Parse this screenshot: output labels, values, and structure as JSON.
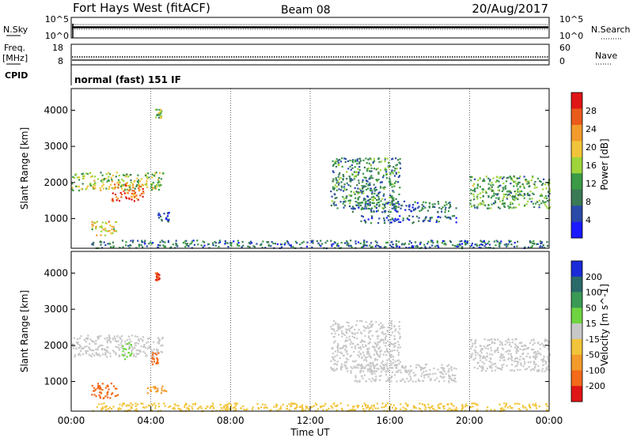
{
  "header": {
    "station": "Fort Hays West (fitACF)",
    "beam": "Beam 08",
    "date": "20/Aug/2017"
  },
  "status_panels": {
    "nsky": {
      "label": "N.Sky",
      "ticks": [
        "10^5",
        "10^0"
      ]
    },
    "nsearch": {
      "label": "N.Search",
      "ticks": [
        "10^5",
        "10^0"
      ]
    },
    "freq": {
      "label_lines": [
        "Freq.",
        "[MHz]"
      ],
      "ticks": [
        "18",
        "8"
      ]
    },
    "nave": {
      "label": "Nave",
      "ticks": [
        "60",
        "0"
      ]
    },
    "cpid": {
      "label": "CPID",
      "value": "normal (fast) 151 IF"
    }
  },
  "chart_data": [
    {
      "type": "heatmap",
      "name": "power-panel",
      "xlabel": "",
      "ylabel": "Slant Range [km]",
      "y_ticks": [
        "1000",
        "2000",
        "3000",
        "4000"
      ],
      "ylim": [
        180,
        4600
      ],
      "colorbar": {
        "label": "Power [dB]",
        "ticks": [
          "4",
          "8",
          "12",
          "16",
          "20",
          "24",
          "28"
        ],
        "range": [
          0,
          32
        ],
        "colors": [
          "#1a1aff",
          "#2a4aa8",
          "#3a7a55",
          "#3a9a45",
          "#9ed43a",
          "#f2c43a",
          "#f29a2a",
          "#ea5a1a",
          "#e01515"
        ]
      },
      "echo_regions": [
        {
          "t": [
            0.0,
            4.6
          ],
          "r": [
            1800,
            2300
          ],
          "power": 16
        },
        {
          "t": [
            2.0,
            3.6
          ],
          "r": [
            1500,
            2000
          ],
          "power": 26
        },
        {
          "t": [
            1.0,
            2.3
          ],
          "r": [
            550,
            950
          ],
          "power": 20
        },
        {
          "t": [
            4.2,
            4.5
          ],
          "r": [
            3800,
            4050
          ],
          "power": 14
        },
        {
          "t": [
            4.3,
            4.9
          ],
          "r": [
            900,
            1200
          ],
          "power": 6
        },
        {
          "t": [
            1.0,
            24.0
          ],
          "r": [
            200,
            420
          ],
          "power": 8
        },
        {
          "t": [
            13.0,
            16.5
          ],
          "r": [
            1300,
            2700
          ],
          "power": 10
        },
        {
          "t": [
            14.0,
            19.3
          ],
          "r": [
            1200,
            1500
          ],
          "power": 8
        },
        {
          "t": [
            14.5,
            19.3
          ],
          "r": [
            900,
            1100
          ],
          "power": 6
        },
        {
          "t": [
            20.0,
            24.0
          ],
          "r": [
            1300,
            2200
          ],
          "power": 12
        }
      ]
    },
    {
      "type": "heatmap",
      "name": "velocity-panel",
      "xlabel": "Time UT",
      "ylabel": "Slant Range [km]",
      "x_ticks": [
        "00:00",
        "04:00",
        "08:00",
        "12:00",
        "16:00",
        "20:00",
        "00:00"
      ],
      "x_values": [
        0,
        4,
        8,
        12,
        16,
        20,
        24
      ],
      "y_ticks": [
        "1000",
        "2000",
        "3000",
        "4000"
      ],
      "ylim": [
        180,
        4600
      ],
      "colorbar": {
        "label": "Velocity [m s^-1]",
        "ticks": [
          "200",
          "100",
          "50",
          "15",
          "-15",
          "-50",
          "-100",
          "-200"
        ],
        "colors": [
          "#1a2ad8",
          "#2a6a6a",
          "#3a9a55",
          "#6ed440",
          "#c8c8c8",
          "#f2c43a",
          "#f29a2a",
          "#f26a1a",
          "#e01515"
        ]
      },
      "echo_regions": [
        {
          "t": [
            0.0,
            4.6
          ],
          "r": [
            1700,
            2300
          ],
          "velocity": 0
        },
        {
          "t": [
            2.5,
            3.0
          ],
          "r": [
            1600,
            2100
          ],
          "velocity": 30
        },
        {
          "t": [
            4.0,
            4.4
          ],
          "r": [
            1500,
            1900
          ],
          "velocity": -150
        },
        {
          "t": [
            4.2,
            4.4
          ],
          "r": [
            3800,
            4050
          ],
          "velocity": -200
        },
        {
          "t": [
            1.0,
            2.3
          ],
          "r": [
            550,
            1000
          ],
          "velocity": -120
        },
        {
          "t": [
            3.8,
            4.8
          ],
          "r": [
            700,
            950
          ],
          "velocity": -80
        },
        {
          "t": [
            1.0,
            24.0
          ],
          "r": [
            200,
            420
          ],
          "velocity": -30
        },
        {
          "t": [
            13.0,
            16.5
          ],
          "r": [
            1300,
            2700
          ],
          "velocity": 0
        },
        {
          "t": [
            14.0,
            19.3
          ],
          "r": [
            1000,
            1500
          ],
          "velocity": 0
        },
        {
          "t": [
            20.0,
            24.0
          ],
          "r": [
            1300,
            2200
          ],
          "velocity": 0
        }
      ]
    }
  ]
}
